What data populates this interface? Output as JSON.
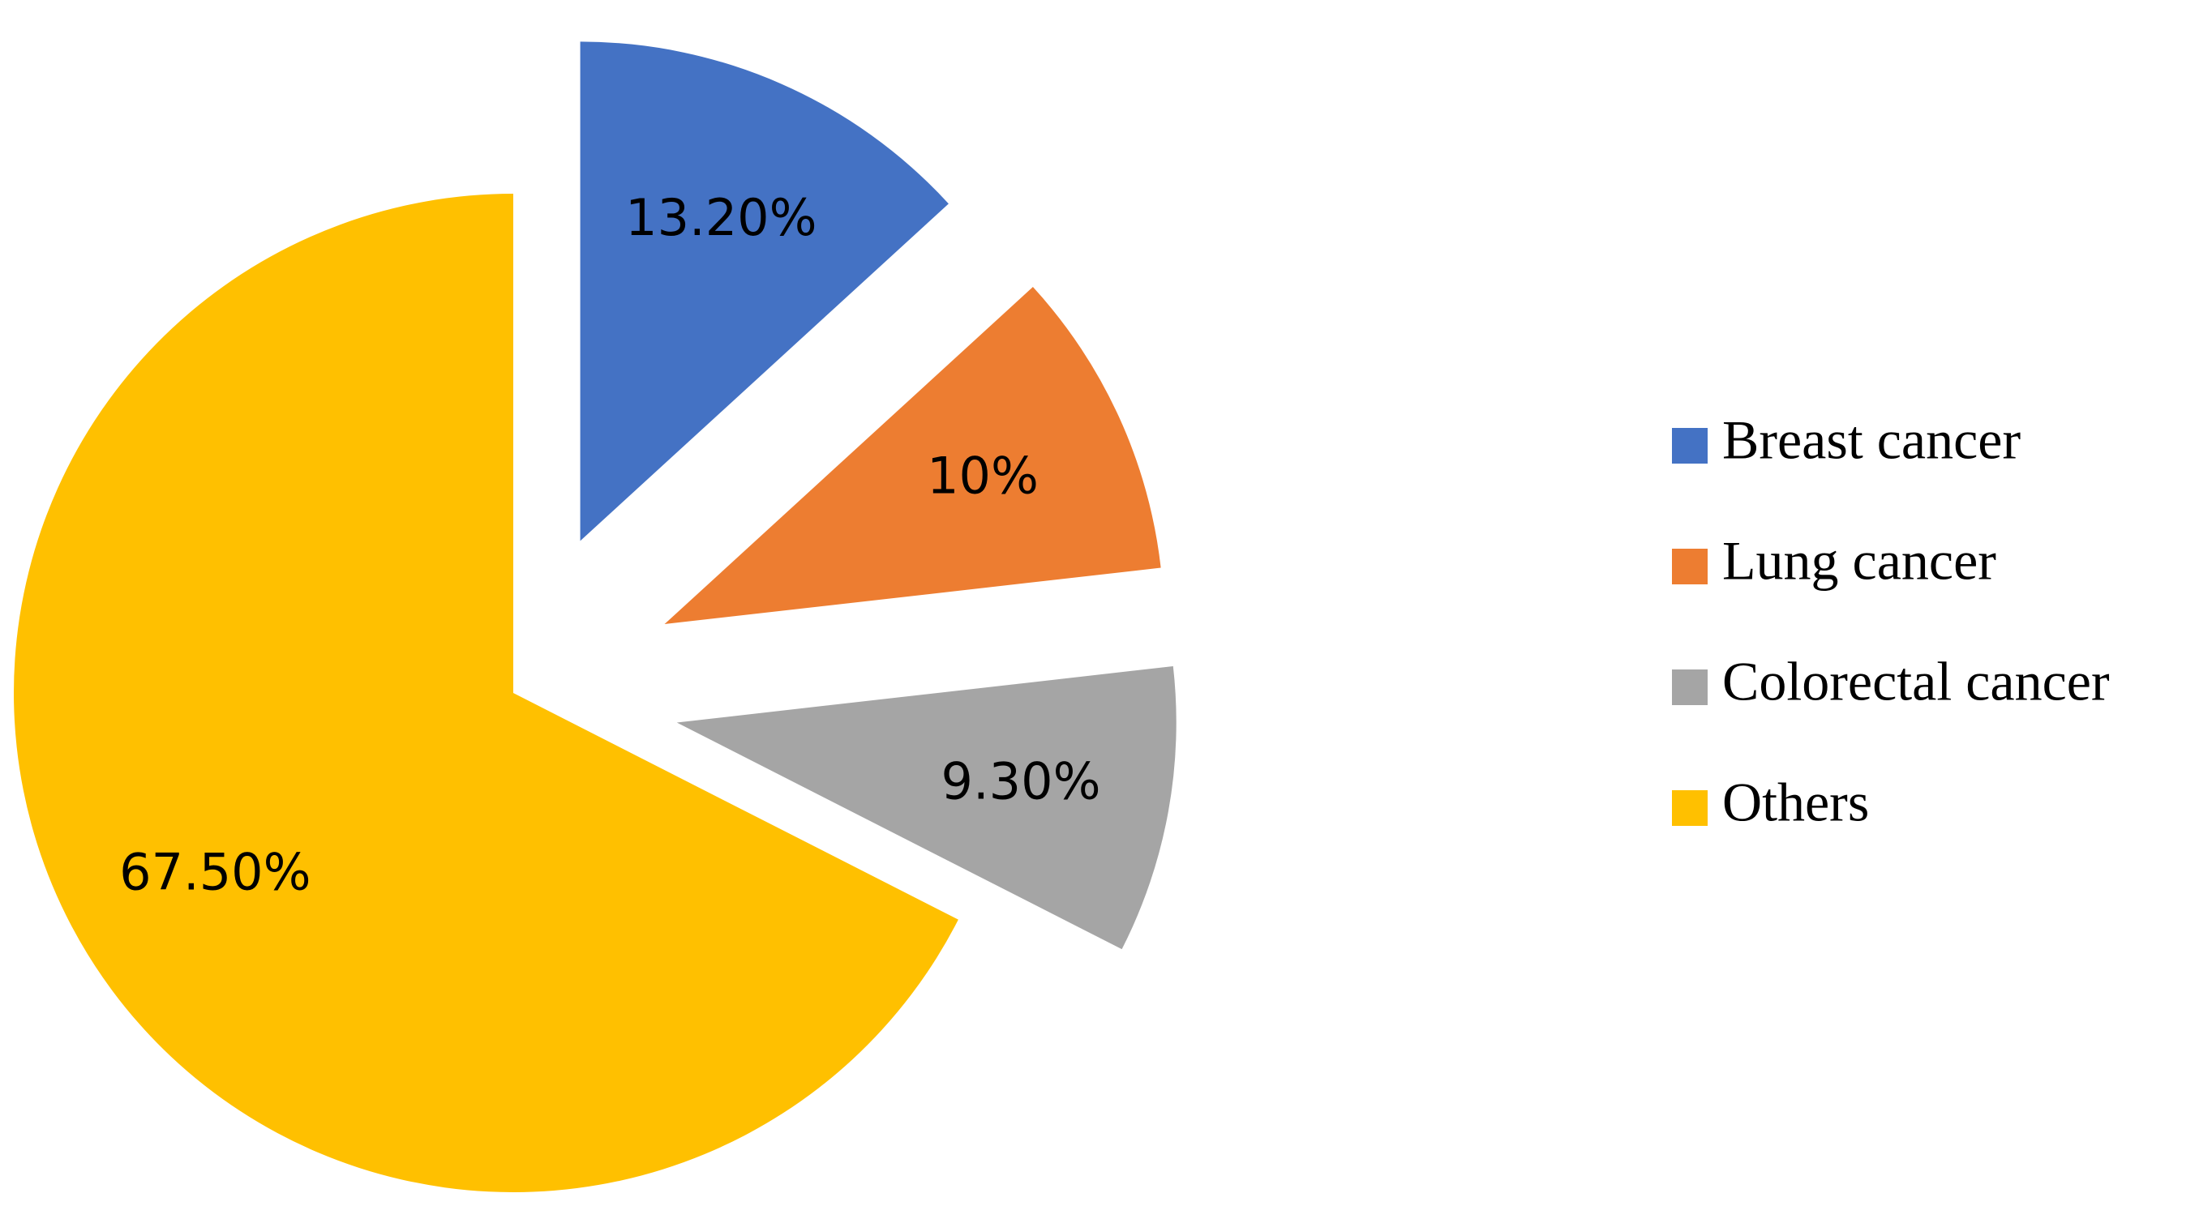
{
  "chart_data": {
    "type": "pie",
    "categories": [
      "Breast cancer",
      "Lung cancer",
      "Colorectal cancer",
      "Others"
    ],
    "values": [
      13.2,
      10,
      9.3,
      67.5
    ],
    "value_labels": [
      "13.20%",
      "10%",
      "9.30%",
      "67.50%"
    ],
    "colors": [
      "#4472c4",
      "#ed7d31",
      "#a5a5a5",
      "#ffc000"
    ],
    "exploded": [
      true,
      true,
      true,
      false
    ],
    "legend": "right"
  }
}
